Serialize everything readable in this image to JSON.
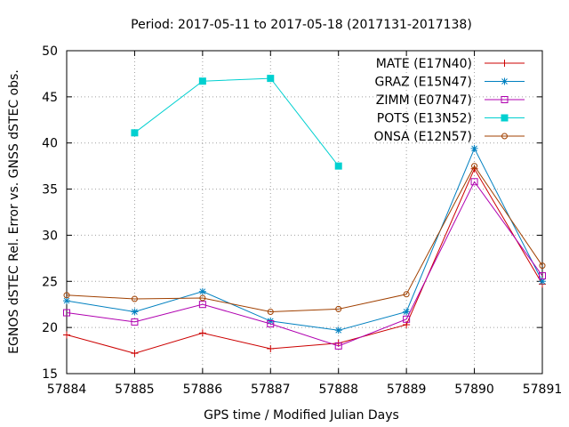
{
  "chart_data": {
    "type": "line",
    "title": "Period: 2017-05-11 to 2017-05-18 (2017131-2017138)",
    "xlabel": "GPS time / Modified Julian Days",
    "ylabel": "EGNOS dSTEC Rel. Error vs. GNSS dSTEC obs.",
    "xlim": [
      57884,
      57891
    ],
    "ylim": [
      15,
      50
    ],
    "xticks": [
      "57884",
      "57885",
      "57886",
      "57887",
      "57888",
      "57889",
      "57890",
      "57891"
    ],
    "yticks": [
      "15",
      "20",
      "25",
      "30",
      "35",
      "40",
      "45",
      "50"
    ],
    "grid": true,
    "legend_position": "top-right",
    "series": [
      {
        "name": "MATE (E17N40)",
        "color": "#cc0000",
        "marker": "plus",
        "x": [
          57884,
          57885,
          57886,
          57887,
          57888,
          57889,
          57890,
          57891
        ],
        "values": [
          19.2,
          17.2,
          19.4,
          17.7,
          18.3,
          20.3,
          37.2,
          24.7
        ]
      },
      {
        "name": "GRAZ (E15N47)",
        "color": "#0080c0",
        "marker": "star",
        "x": [
          57884,
          57885,
          57886,
          57887,
          57888,
          57889,
          57890,
          57891
        ],
        "values": [
          22.9,
          21.7,
          23.9,
          20.7,
          19.7,
          21.7,
          39.4,
          25.0
        ]
      },
      {
        "name": "ZIMM (E07N47)",
        "color": "#b000b0",
        "marker": "open-square",
        "x": [
          57884,
          57885,
          57886,
          57887,
          57888,
          57889,
          57890,
          57891
        ],
        "values": [
          21.6,
          20.6,
          22.5,
          20.4,
          18.0,
          20.9,
          35.8,
          25.6
        ]
      },
      {
        "name": "POTS (E13N52)",
        "color": "#00d0d0",
        "marker": "filled-square",
        "x": [
          57885,
          57886,
          57887,
          57888
        ],
        "values": [
          41.1,
          46.7,
          47.0,
          37.5
        ]
      },
      {
        "name": "ONSA (E12N57)",
        "color": "#a04000",
        "marker": "open-circle",
        "x": [
          57884,
          57885,
          57886,
          57887,
          57888,
          57889,
          57890,
          57891
        ],
        "values": [
          23.5,
          23.1,
          23.2,
          21.7,
          22.0,
          23.6,
          37.5,
          26.7
        ]
      }
    ]
  }
}
